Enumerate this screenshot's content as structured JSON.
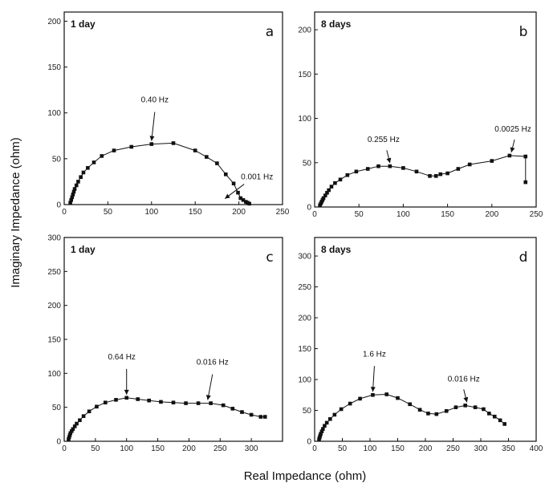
{
  "figure": {
    "ylabel": "Imaginary Impedance (ohm)",
    "xlabel": "Real Impedance (ohm)"
  },
  "chart_data": [
    {
      "type": "scatter",
      "panel": "a",
      "title": "1 day",
      "xlim": [
        0,
        250
      ],
      "ylim": [
        0,
        210
      ],
      "xticks": [
        0,
        50,
        100,
        150,
        200,
        250
      ],
      "yticks": [
        0,
        50,
        100,
        150,
        200
      ],
      "x": [
        7,
        8,
        9,
        10,
        11,
        12,
        14,
        16,
        19,
        22,
        27,
        34,
        43,
        57,
        77,
        100,
        125,
        150,
        163,
        175,
        185,
        194,
        199,
        202,
        205,
        208,
        210,
        212
      ],
      "y": [
        2,
        5,
        8,
        11,
        14,
        17,
        21,
        25,
        30,
        35,
        40,
        46,
        53,
        59,
        63,
        66,
        67,
        59,
        52,
        45,
        33,
        23,
        13,
        7,
        5,
        3,
        2,
        1
      ],
      "annotations": [
        {
          "text": "0.40 Hz",
          "x": 100,
          "y": 66
        },
        {
          "text": "0.001 Hz",
          "x": 184,
          "y": 3
        }
      ]
    },
    {
      "type": "scatter",
      "panel": "b",
      "title": "8 days",
      "xlim": [
        0,
        250
      ],
      "ylim": [
        0,
        220
      ],
      "xticks": [
        0,
        50,
        100,
        150,
        200,
        250
      ],
      "yticks": [
        0,
        50,
        100,
        150,
        200
      ],
      "x": [
        6,
        7,
        8,
        9,
        10,
        12,
        14,
        16,
        19,
        23,
        29,
        37,
        47,
        60,
        72,
        85,
        100,
        115,
        130,
        137,
        142,
        150,
        162,
        175,
        200,
        220,
        238,
        238
      ],
      "y": [
        2,
        4,
        6,
        8,
        10,
        13,
        16,
        19,
        23,
        27,
        31,
        36,
        40,
        43,
        46,
        46,
        44,
        40,
        35,
        35,
        37,
        38,
        43,
        48,
        52,
        58,
        57,
        28
      ],
      "annotations": [
        {
          "text": "0.255 Hz",
          "x": 85,
          "y": 46
        },
        {
          "text": "0.0025 Hz",
          "x": 222,
          "y": 58
        }
      ]
    },
    {
      "type": "scatter",
      "panel": "c",
      "title": "1 day",
      "xlim": [
        0,
        350
      ],
      "ylim": [
        0,
        300
      ],
      "xticks": [
        0,
        50,
        100,
        150,
        200,
        250,
        300
      ],
      "yticks": [
        0,
        50,
        100,
        150,
        200,
        250,
        300
      ],
      "x": [
        7,
        8,
        9,
        10,
        12,
        14,
        17,
        20,
        25,
        31,
        40,
        52,
        66,
        83,
        100,
        118,
        136,
        155,
        175,
        195,
        215,
        235,
        255,
        270,
        285,
        300,
        315,
        322
      ],
      "y": [
        3,
        6,
        9,
        12,
        15,
        18,
        22,
        26,
        31,
        37,
        44,
        51,
        57,
        61,
        64,
        62,
        60,
        58,
        57,
        56,
        56,
        56,
        53,
        48,
        43,
        39,
        36,
        36
      ],
      "annotations": [
        {
          "text": "0.64 Hz",
          "x": 100,
          "y": 64
        },
        {
          "text": "0.016 Hz",
          "x": 230,
          "y": 56
        }
      ]
    },
    {
      "type": "scatter",
      "panel": "d",
      "title": "8 days",
      "xlim": [
        0,
        400
      ],
      "ylim": [
        0,
        330
      ],
      "xticks": [
        0,
        50,
        100,
        150,
        200,
        250,
        300,
        350,
        400
      ],
      "yticks": [
        0,
        50,
        100,
        150,
        200,
        250,
        300
      ],
      "x": [
        8,
        9,
        10,
        11,
        13,
        15,
        18,
        22,
        28,
        36,
        48,
        64,
        82,
        105,
        130,
        150,
        172,
        190,
        205,
        220,
        238,
        255,
        272,
        290,
        305,
        315,
        325,
        335,
        343
      ],
      "y": [
        3,
        6,
        9,
        12,
        16,
        20,
        25,
        30,
        36,
        43,
        52,
        61,
        69,
        75,
        76,
        70,
        60,
        51,
        45,
        44,
        49,
        55,
        58,
        55,
        52,
        45,
        40,
        34,
        28
      ],
      "annotations": [
        {
          "text": "1.6 Hz",
          "x": 105,
          "y": 75
        },
        {
          "text": "0.016 Hz",
          "x": 275,
          "y": 58
        }
      ]
    }
  ]
}
